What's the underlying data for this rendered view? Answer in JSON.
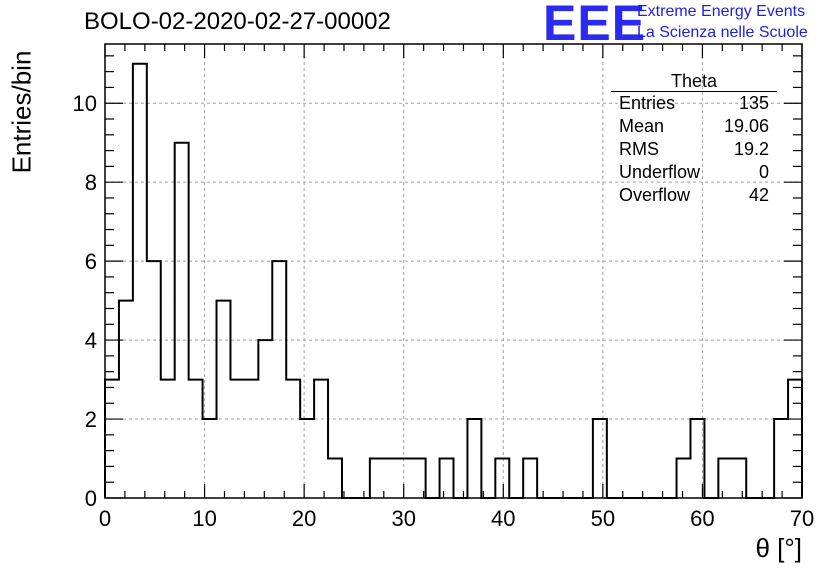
{
  "chart_data": {
    "type": "bar",
    "title": "BOLO-02-2020-02-27-00002",
    "xlabel": "θ [°]",
    "ylabel": "Entries/bin",
    "xlim": [
      0,
      70
    ],
    "ylim": [
      0,
      11.5
    ],
    "bin_width": 1.4,
    "x_ticks": [
      0,
      10,
      20,
      30,
      40,
      50,
      60,
      70
    ],
    "y_ticks": [
      0,
      2,
      4,
      6,
      8,
      10
    ],
    "grid": true,
    "legend": "none",
    "values": [
      3,
      5,
      11,
      6,
      3,
      9,
      3,
      2,
      5,
      3,
      3,
      4,
      6,
      3,
      2,
      3,
      1,
      0,
      0,
      1,
      1,
      1,
      1,
      0,
      1,
      0,
      2,
      0,
      1,
      0,
      1,
      0,
      0,
      0,
      0,
      2,
      0,
      0,
      0,
      0,
      0,
      1,
      2,
      0,
      1,
      1,
      0,
      0,
      2,
      3
    ]
  },
  "stats": {
    "title": "Theta",
    "rows": [
      {
        "label": "Entries",
        "value": "135"
      },
      {
        "label": "Mean",
        "value": "19.06"
      },
      {
        "label": "RMS",
        "value": "19.2"
      },
      {
        "label": "Underflow",
        "value": "0"
      },
      {
        "label": "Overflow",
        "value": "42"
      }
    ]
  },
  "logo": {
    "mark": "EEE",
    "line1": "Extreme Energy Events",
    "line2": "La Scienza nelle Scuole"
  },
  "colors": {
    "histogram": "#000000",
    "grid": "#a0a0a0",
    "logo": "#2b2bf0"
  }
}
